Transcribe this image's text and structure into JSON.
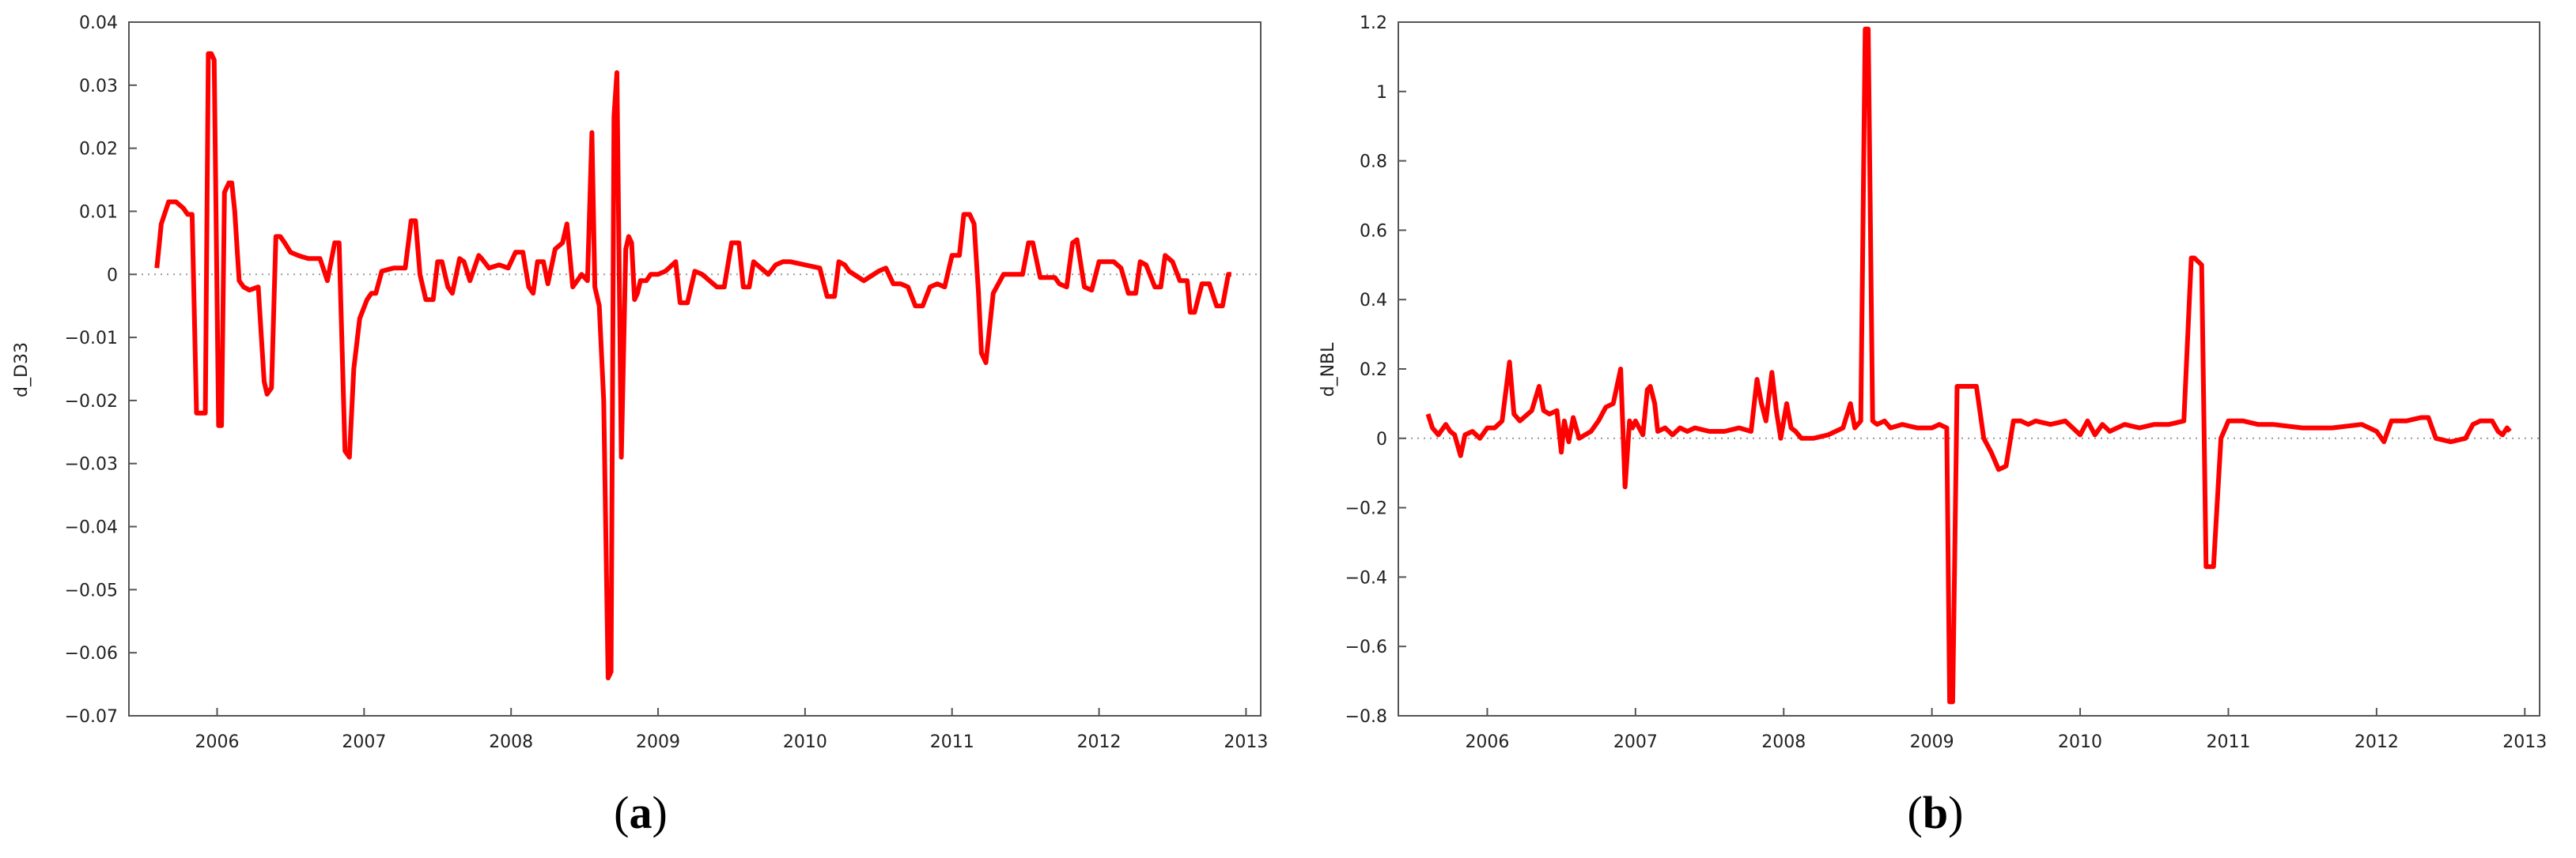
{
  "chart_data": [
    {
      "type": "line",
      "ylabel": "d_D33",
      "caption_left": "(",
      "caption_letter": "a",
      "caption_right": ")",
      "color": "#ff0000",
      "xlim": [
        2005.4,
        2013.1
      ],
      "ylim": [
        -0.07,
        0.04
      ],
      "xticks": [
        2006,
        2007,
        2008,
        2009,
        2010,
        2011,
        2012,
        2013
      ],
      "yticks": [
        0.04,
        0.03,
        0.02,
        0.01,
        0,
        -0.01,
        -0.02,
        -0.03,
        -0.04,
        -0.05,
        -0.06,
        -0.07
      ],
      "ytick_labels": [
        "0.04",
        "0.03",
        "0.02",
        "0.01",
        "0",
        "−0.01",
        "−0.02",
        "−0.03",
        "−0.04",
        "−0.05",
        "−0.06",
        "−0.07"
      ],
      "series": [
        {
          "x": [
            2005.59,
            2005.62,
            2005.67,
            2005.72,
            2005.77,
            2005.8,
            2005.83,
            2005.86,
            2005.88,
            2005.92,
            2005.94,
            2005.96,
            2005.98,
            2006.01,
            2006.03,
            2006.05,
            2006.08,
            2006.1,
            2006.12,
            2006.15,
            2006.18,
            2006.22,
            2006.28,
            2006.32,
            2006.34,
            2006.37,
            2006.4,
            2006.43,
            2006.46,
            2006.5,
            2006.55,
            2006.62,
            2006.7,
            2006.75,
            2006.8,
            2006.83,
            2006.87,
            2006.9,
            2006.93,
            2006.97,
            2007.02,
            2007.05,
            2007.08,
            2007.12,
            2007.2,
            2007.28,
            2007.32,
            2007.35,
            2007.38,
            2007.42,
            2007.47,
            2007.5,
            2007.53,
            2007.57,
            2007.6,
            2007.65,
            2007.68,
            2007.72,
            2007.78,
            2007.8,
            2007.85,
            2007.92,
            2007.98,
            2008.03,
            2008.08,
            2008.12,
            2008.15,
            2008.18,
            2008.22,
            2008.25,
            2008.3,
            2008.35,
            2008.38,
            2008.42,
            2008.45,
            2008.48,
            2008.52,
            2008.55,
            2008.57,
            2008.6,
            2008.63,
            2008.66,
            2008.68,
            2008.7,
            2008.72,
            2008.75,
            2008.78,
            2008.8,
            2008.82,
            2008.84,
            2008.86,
            2008.88,
            2008.9,
            2008.92,
            2008.95,
            2009.0,
            2009.05,
            2009.12,
            2009.15,
            2009.2,
            2009.25,
            2009.3,
            2009.35,
            2009.4,
            2009.45,
            2009.5,
            2009.55,
            2009.58,
            2009.62,
            2009.65,
            2009.7,
            2009.75,
            2009.8,
            2009.85,
            2009.9,
            2010.0,
            2010.1,
            2010.15,
            2010.2,
            2010.23,
            2010.27,
            2010.3,
            2010.4,
            2010.5,
            2010.55,
            2010.6,
            2010.65,
            2010.7,
            2010.75,
            2010.8,
            2010.85,
            2010.9,
            2010.95,
            2011.0,
            2011.05,
            2011.08,
            2011.12,
            2011.15,
            2011.18,
            2011.2,
            2011.23,
            2011.28,
            2011.35,
            2011.42,
            2011.48,
            2011.52,
            2011.55,
            2011.6,
            2011.7,
            2011.73,
            2011.78,
            2011.82,
            2011.85,
            2011.9,
            2011.95,
            2012.0,
            2012.05,
            2012.1,
            2012.15,
            2012.2,
            2012.25,
            2012.28,
            2012.32,
            2012.38,
            2012.42,
            2012.45,
            2012.5,
            2012.55,
            2012.6,
            2012.62,
            2012.65,
            2012.7,
            2012.75,
            2012.8,
            2012.84,
            2012.88,
            2012.9
          ],
          "y": [
            0.001,
            0.008,
            0.0115,
            0.0115,
            0.0105,
            0.0095,
            0.0095,
            -0.022,
            -0.022,
            -0.022,
            0.035,
            0.035,
            0.034,
            -0.024,
            -0.024,
            0.013,
            0.0145,
            0.0145,
            0.01,
            -0.001,
            -0.002,
            -0.0025,
            -0.002,
            -0.017,
            -0.019,
            -0.018,
            0.006,
            0.006,
            0.005,
            0.0035,
            0.003,
            0.0025,
            0.0025,
            -0.001,
            0.005,
            0.005,
            -0.028,
            -0.029,
            -0.015,
            -0.007,
            -0.004,
            -0.003,
            -0.003,
            0.0005,
            0.001,
            0.001,
            0.0085,
            0.0085,
            0.0,
            -0.004,
            -0.004,
            0.002,
            0.002,
            -0.002,
            -0.003,
            0.0025,
            0.002,
            -0.001,
            0.003,
            0.0025,
            0.001,
            0.0015,
            0.001,
            0.0035,
            0.0035,
            -0.002,
            -0.003,
            0.002,
            0.002,
            -0.0015,
            0.004,
            0.005,
            0.008,
            -0.002,
            -0.001,
            0.0,
            -0.001,
            0.0225,
            -0.002,
            -0.005,
            -0.02,
            -0.064,
            -0.063,
            0.025,
            0.032,
            -0.029,
            0.004,
            0.006,
            0.005,
            -0.004,
            -0.003,
            -0.001,
            -0.001,
            -0.001,
            0.0,
            0.0,
            0.0005,
            0.002,
            -0.0045,
            -0.0045,
            0.0005,
            0.0,
            -0.001,
            -0.002,
            -0.002,
            0.005,
            0.005,
            -0.002,
            -0.002,
            0.002,
            0.001,
            0.0,
            0.0015,
            0.002,
            0.002,
            0.0015,
            0.001,
            -0.0035,
            -0.0035,
            0.002,
            0.0015,
            0.0005,
            -0.001,
            0.0005,
            0.001,
            -0.0015,
            -0.0015,
            -0.002,
            -0.005,
            -0.005,
            -0.002,
            -0.0015,
            -0.002,
            0.003,
            0.003,
            0.0095,
            0.0095,
            0.008,
            -0.003,
            -0.0125,
            -0.014,
            -0.003,
            0.0,
            0.0,
            0.0,
            0.005,
            0.005,
            -0.0005,
            -0.0005,
            -0.0015,
            -0.002,
            0.005,
            0.0055,
            -0.002,
            -0.0025,
            0.002,
            0.002,
            0.002,
            0.001,
            -0.003,
            -0.003,
            0.002,
            0.0015,
            -0.002,
            -0.002,
            0.003,
            0.002,
            -0.001,
            -0.001,
            -0.006,
            -0.006,
            -0.0015,
            -0.0015,
            -0.005,
            -0.005,
            0.0,
            0.0
          ]
        }
      ]
    },
    {
      "type": "line",
      "ylabel": "d_NBL",
      "caption_left": "(",
      "caption_letter": "b",
      "caption_right": ")",
      "color": "#ff0000",
      "xlim": [
        2005.4,
        2013.1
      ],
      "ylim": [
        -0.8,
        1.2
      ],
      "xticks": [
        2006,
        2007,
        2008,
        2009,
        2010,
        2011,
        2012,
        2013
      ],
      "yticks": [
        1.2,
        1,
        0.8,
        0.6,
        0.4,
        0.2,
        0,
        -0.2,
        -0.4,
        -0.6,
        -0.8
      ],
      "ytick_labels": [
        "1.2",
        "1",
        "0.8",
        "0.6",
        "0.4",
        "0.2",
        "0",
        "−0.2",
        "−0.4",
        "−0.6",
        "−0.8"
      ],
      "series": [
        {
          "x": [
            2005.6,
            2005.63,
            2005.67,
            2005.72,
            2005.75,
            2005.78,
            2005.82,
            2005.85,
            2005.9,
            2005.95,
            2006.0,
            2006.05,
            2006.1,
            2006.15,
            2006.18,
            2006.22,
            2006.3,
            2006.35,
            2006.38,
            2006.42,
            2006.47,
            2006.5,
            2006.52,
            2006.55,
            2006.58,
            2006.62,
            2006.7,
            2006.75,
            2006.8,
            2006.85,
            2006.9,
            2006.93,
            2006.96,
            2006.98,
            2007.0,
            2007.05,
            2007.08,
            2007.1,
            2007.13,
            2007.15,
            2007.2,
            2007.25,
            2007.3,
            2007.35,
            2007.4,
            2007.5,
            2007.6,
            2007.7,
            2007.78,
            2007.82,
            2007.85,
            2007.88,
            2007.92,
            2007.95,
            2007.98,
            2008.02,
            2008.05,
            2008.08,
            2008.12,
            2008.2,
            2008.3,
            2008.4,
            2008.45,
            2008.48,
            2008.52,
            2008.55,
            2008.57,
            2008.6,
            2008.63,
            2008.68,
            2008.72,
            2008.8,
            2008.9,
            2009.0,
            2009.05,
            2009.1,
            2009.12,
            2009.14,
            2009.17,
            2009.2,
            2009.25,
            2009.3,
            2009.35,
            2009.4,
            2009.45,
            2009.5,
            2009.55,
            2009.6,
            2009.65,
            2009.7,
            2009.8,
            2009.9,
            2010.0,
            2010.05,
            2010.1,
            2010.15,
            2010.2,
            2010.3,
            2010.4,
            2010.5,
            2010.6,
            2010.7,
            2010.75,
            2010.77,
            2010.82,
            2010.85,
            2010.88,
            2010.9,
            2010.95,
            2011.0,
            2011.1,
            2011.2,
            2011.3,
            2011.5,
            2011.7,
            2011.9,
            2012.0,
            2012.05,
            2012.1,
            2012.2,
            2012.3,
            2012.35,
            2012.4,
            2012.5,
            2012.6,
            2012.65,
            2012.7,
            2012.78,
            2012.82,
            2012.85,
            2012.88,
            2012.9
          ],
          "y": [
            0.07,
            0.03,
            0.01,
            0.04,
            0.02,
            0.01,
            -0.05,
            0.01,
            0.02,
            0.0,
            0.03,
            0.03,
            0.05,
            0.22,
            0.07,
            0.05,
            0.08,
            0.15,
            0.08,
            0.07,
            0.08,
            -0.04,
            0.05,
            -0.01,
            0.06,
            0.0,
            0.02,
            0.05,
            0.09,
            0.1,
            0.2,
            -0.14,
            0.05,
            0.03,
            0.05,
            0.01,
            0.14,
            0.15,
            0.1,
            0.02,
            0.03,
            0.01,
            0.03,
            0.02,
            0.03,
            0.02,
            0.02,
            0.03,
            0.02,
            0.17,
            0.1,
            0.05,
            0.19,
            0.08,
            0.0,
            0.1,
            0.03,
            0.02,
            0.0,
            0.0,
            0.01,
            0.03,
            0.1,
            0.03,
            0.05,
            1.18,
            1.18,
            0.05,
            0.04,
            0.05,
            0.03,
            0.04,
            0.03,
            0.03,
            0.04,
            0.03,
            -0.76,
            -0.76,
            0.15,
            0.15,
            0.15,
            0.15,
            0.0,
            -0.04,
            -0.09,
            -0.08,
            0.05,
            0.05,
            0.04,
            0.05,
            0.04,
            0.05,
            0.01,
            0.05,
            0.01,
            0.04,
            0.02,
            0.04,
            0.03,
            0.04,
            0.04,
            0.05,
            0.52,
            0.52,
            0.5,
            -0.37,
            -0.37,
            -0.37,
            0.0,
            0.05,
            0.05,
            0.04,
            0.04,
            0.03,
            0.03,
            0.04,
            0.02,
            -0.01,
            0.05,
            0.05,
            0.06,
            0.06,
            0.0,
            -0.01,
            0.0,
            0.04,
            0.05,
            0.05,
            0.02,
            0.01,
            0.03,
            0.02
          ]
        }
      ]
    }
  ]
}
